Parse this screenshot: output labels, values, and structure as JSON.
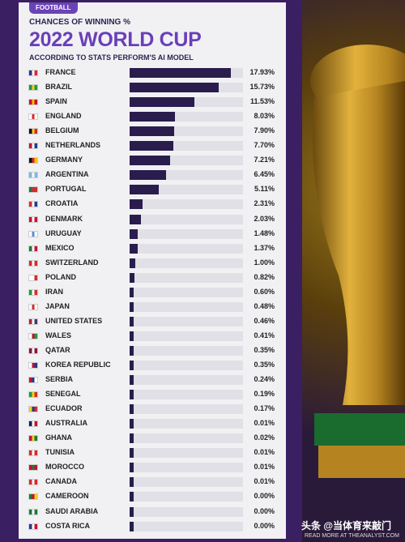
{
  "header": {
    "badge": "FOOTBALL",
    "kicker": "CHANCES OF WINNING %",
    "title": "2022 WORLD CUP",
    "subtitle": "ACCORDING TO STATS PERFORM'S AI MODEL"
  },
  "chart_data": {
    "type": "bar",
    "orientation": "horizontal",
    "title": "2022 WORLD CUP",
    "subtitle": "CHANCES OF WINNING %",
    "xlim": [
      0,
      17.93
    ],
    "categories": [
      "FRANCE",
      "BRAZIL",
      "SPAIN",
      "ENGLAND",
      "BELGIUM",
      "NETHERLANDS",
      "GERMANY",
      "ARGENTINA",
      "PORTUGAL",
      "CROATIA",
      "DENMARK",
      "URUGUAY",
      "MEXICO",
      "SWITZERLAND",
      "POLAND",
      "IRAN",
      "JAPAN",
      "UNITED STATES",
      "WALES",
      "QATAR",
      "KOREA REPUBLIC",
      "SERBIA",
      "SENEGAL",
      "ECUADOR",
      "AUSTRALIA",
      "GHANA",
      "TUNISIA",
      "MOROCCO",
      "CANADA",
      "CAMEROON",
      "SAUDI ARABIA",
      "COSTA RICA"
    ],
    "values": [
      17.93,
      15.73,
      11.53,
      8.03,
      7.9,
      7.7,
      7.21,
      6.45,
      5.11,
      2.31,
      2.03,
      1.48,
      1.37,
      1.0,
      0.82,
      0.6,
      0.48,
      0.46,
      0.41,
      0.35,
      0.35,
      0.24,
      0.19,
      0.17,
      0.01,
      0.02,
      0.01,
      0.01,
      0.01,
      0.0,
      0.0,
      0.0
    ],
    "labels": [
      "17.93%",
      "15.73%",
      "11.53%",
      "8.03%",
      "7.90%",
      "7.70%",
      "7.21%",
      "6.45%",
      "5.11%",
      "2.31%",
      "2.03%",
      "1.48%",
      "1.37%",
      "1.00%",
      "0.82%",
      "0.60%",
      "0.48%",
      "0.46%",
      "0.41%",
      "0.35%",
      "0.35%",
      "0.24%",
      "0.19%",
      "0.17%",
      "0.01%",
      "0.02%",
      "0.01%",
      "0.01%",
      "0.01%",
      "0.00%",
      "0.00%",
      "0.00%"
    ],
    "flags": [
      [
        "#1f3b8f",
        "#ffffff",
        "#d62b2b"
      ],
      [
        "#1a9b3c",
        "#f2d01e",
        "#1a9b3c"
      ],
      [
        "#c8102e",
        "#f2c200",
        "#c8102e"
      ],
      [
        "#ffffff",
        "#d62b2b",
        "#ffffff"
      ],
      [
        "#111111",
        "#f2d01e",
        "#d62b2b"
      ],
      [
        "#c8102e",
        "#ffffff",
        "#1f3b8f"
      ],
      [
        "#111111",
        "#d62b2b",
        "#f2c200"
      ],
      [
        "#7ab8e6",
        "#ffffff",
        "#7ab8e6"
      ],
      [
        "#1a7a3a",
        "#d62b2b",
        "#d62b2b"
      ],
      [
        "#d62b2b",
        "#ffffff",
        "#1f3b8f"
      ],
      [
        "#c8102e",
        "#ffffff",
        "#c8102e"
      ],
      [
        "#ffffff",
        "#5b8fd1",
        "#ffffff"
      ],
      [
        "#1a7a3a",
        "#ffffff",
        "#c8102e"
      ],
      [
        "#d62b2b",
        "#ffffff",
        "#d62b2b"
      ],
      [
        "#ffffff",
        "#ffffff",
        "#d62b2b"
      ],
      [
        "#1a9b3c",
        "#ffffff",
        "#d62b2b"
      ],
      [
        "#ffffff",
        "#d62b2b",
        "#ffffff"
      ],
      [
        "#b22234",
        "#ffffff",
        "#3c3b6e"
      ],
      [
        "#ffffff",
        "#c8102e",
        "#1a9b3c"
      ],
      [
        "#8a1538",
        "#ffffff",
        "#8a1538"
      ],
      [
        "#ffffff",
        "#c8102e",
        "#1f3b8f"
      ],
      [
        "#c8102e",
        "#1f3b8f",
        "#ffffff"
      ],
      [
        "#1a9b3c",
        "#f2d01e",
        "#d62b2b"
      ],
      [
        "#f2d01e",
        "#1f3b8f",
        "#d62b2b"
      ],
      [
        "#012169",
        "#ffffff",
        "#c8102e"
      ],
      [
        "#c8102e",
        "#f2d01e",
        "#1a7a3a"
      ],
      [
        "#d62b2b",
        "#ffffff",
        "#d62b2b"
      ],
      [
        "#c8102e",
        "#1a7a3a",
        "#c8102e"
      ],
      [
        "#d62b2b",
        "#ffffff",
        "#d62b2b"
      ],
      [
        "#1a7a3a",
        "#c8102e",
        "#f2d01e"
      ],
      [
        "#1a7a3a",
        "#ffffff",
        "#1a7a3a"
      ],
      [
        "#1f3b8f",
        "#ffffff",
        "#c8102e"
      ]
    ]
  },
  "colors": {
    "bar": "#2a1d4d",
    "accent": "#6a3fb9"
  },
  "footer": {
    "watermark": "头条 @当体育来敲门",
    "read_more": "READ MORE AT THEANALYST.COM"
  }
}
